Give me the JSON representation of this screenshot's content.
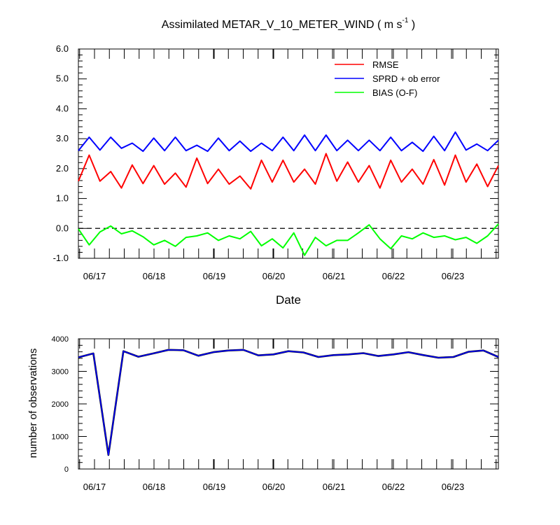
{
  "chart_data": [
    {
      "type": "line",
      "title": "Assimilated METAR_V_10_METER_WIND ( m s",
      "title_sup": "-1",
      "title_end": " )",
      "xlabel": "Date",
      "ylabel": "",
      "ylim": [
        -1.0,
        6.0
      ],
      "yticks": [
        "-1.0",
        "0.0",
        "1.0",
        "2.0",
        "3.0",
        "4.0",
        "5.0",
        "6.0"
      ],
      "xticks": [
        "06/17",
        "06/18",
        "06/19",
        "06/20",
        "06/21",
        "06/22",
        "06/23"
      ],
      "zero_line": "dashed",
      "legend_position": "top-right",
      "series": [
        {
          "name": "RMSE",
          "color": "#ff0000",
          "values": [
            1.58,
            2.45,
            1.58,
            1.9,
            1.35,
            2.12,
            1.5,
            2.1,
            1.48,
            1.85,
            1.38,
            2.35,
            1.5,
            1.98,
            1.48,
            1.75,
            1.32,
            2.28,
            1.55,
            2.28,
            1.55,
            1.98,
            1.48,
            2.5,
            1.58,
            2.22,
            1.55,
            2.1,
            1.35,
            2.28,
            1.55,
            1.98,
            1.48,
            2.3,
            1.45,
            2.45,
            1.55,
            2.15,
            1.4,
            2.1
          ]
        },
        {
          "name": "SPRD + ob error",
          "color": "#0000ff",
          "values": [
            2.6,
            3.05,
            2.62,
            3.05,
            2.68,
            2.85,
            2.58,
            3.02,
            2.6,
            3.05,
            2.6,
            2.78,
            2.58,
            3.02,
            2.6,
            2.92,
            2.58,
            2.85,
            2.6,
            3.05,
            2.6,
            3.12,
            2.6,
            3.12,
            2.6,
            2.95,
            2.6,
            2.95,
            2.6,
            3.05,
            2.6,
            2.88,
            2.58,
            3.08,
            2.6,
            3.22,
            2.62,
            2.82,
            2.6,
            2.95
          ]
        },
        {
          "name": "BIAS (O-F)",
          "color": "#00ff00",
          "values": [
            -0.02,
            -0.55,
            -0.12,
            0.08,
            -0.18,
            -0.08,
            -0.28,
            -0.55,
            -0.4,
            -0.6,
            -0.3,
            -0.25,
            -0.15,
            -0.4,
            -0.25,
            -0.35,
            -0.1,
            -0.58,
            -0.35,
            -0.65,
            -0.15,
            -0.9,
            -0.3,
            -0.58,
            -0.4,
            -0.4,
            -0.15,
            0.12,
            -0.35,
            -0.68,
            -0.25,
            -0.35,
            -0.15,
            -0.3,
            -0.25,
            -0.38,
            -0.3,
            -0.5,
            -0.25,
            0.15
          ]
        }
      ]
    },
    {
      "type": "line",
      "title": "",
      "xlabel": "",
      "ylabel": "number of observations",
      "ylim": [
        0,
        4000
      ],
      "yticks": [
        "0",
        "1000",
        "2000",
        "3000",
        "4000"
      ],
      "xticks": [
        "06/17",
        "06/18",
        "06/19",
        "06/20",
        "06/21",
        "06/22",
        "06/23"
      ],
      "series": [
        {
          "name": "",
          "color": "#0000ff",
          "values": [
            3430,
            3550,
            430,
            3620,
            3450,
            3550,
            3660,
            3650,
            3480,
            3590,
            3640,
            3660,
            3490,
            3520,
            3620,
            3580,
            3440,
            3500,
            3520,
            3560,
            3470,
            3520,
            3590,
            3500,
            3420,
            3440,
            3600,
            3640,
            3440
          ]
        }
      ]
    }
  ]
}
